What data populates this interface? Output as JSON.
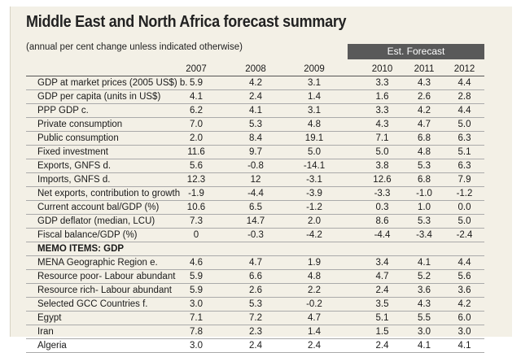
{
  "title": "Middle East and North Africa forecast summary",
  "subtitle": "(annual per cent change unless indicated otherwise)",
  "est_forecast_label": "Est. Forecast",
  "years": [
    "2007",
    "2008",
    "2009",
    "2010",
    "2011",
    "2012"
  ],
  "rows": [
    {
      "label": "GDP at market prices (2005 US$) b.",
      "values": [
        "5.9",
        "4.2",
        "3.1",
        "3.3",
        "4.3",
        "4.4"
      ]
    },
    {
      "label": "GDP per capita (units in US$)",
      "values": [
        "4.1",
        "2.4",
        "1.4",
        "1.6",
        "2.6",
        "2.8"
      ]
    },
    {
      "label": "PPP GDP c.",
      "values": [
        "6.2",
        "4.1",
        "3.1",
        "3.3",
        "4.2",
        "4.4"
      ]
    },
    {
      "label": "Private consumption",
      "values": [
        "7.0",
        "5.3",
        "4.8",
        "4.3",
        "4.7",
        "5.0"
      ]
    },
    {
      "label": "Public consumption",
      "values": [
        "2.0",
        "8.4",
        "19.1",
        "7.1",
        "6.8",
        "6.3"
      ]
    },
    {
      "label": "Fixed investment",
      "values": [
        "11.6",
        "9.7",
        "5.0",
        "5.0",
        "4.8",
        "5.1"
      ]
    },
    {
      "label": "Exports, GNFS d.",
      "values": [
        "5.6",
        "-0.8",
        "-14.1",
        "3.8",
        "5.3",
        "6.3"
      ]
    },
    {
      "label": "Imports, GNFS d.",
      "values": [
        "12.3",
        "12",
        "-3.1",
        "12.6",
        "6.8",
        "7.9"
      ]
    },
    {
      "label": "Net exports, contribution to growth",
      "values": [
        "-1.9",
        "-4.4",
        "-3.9",
        "-3.3",
        "-1.0",
        "-1.2"
      ]
    },
    {
      "label": "Current account bal/GDP (%)",
      "values": [
        "10.6",
        "6.5",
        "-1.2",
        "0.3",
        "1.0",
        "0.0"
      ]
    },
    {
      "label": "GDP deflator (median, LCU)",
      "values": [
        "7.3",
        "14.7",
        "2.0",
        "8.6",
        "5.3",
        "5.0"
      ]
    },
    {
      "label": "Fiscal balance/GDP (%)",
      "values": [
        "0",
        "-0.3",
        "-4.2",
        "-4.4",
        "-3.4",
        "-2.4"
      ]
    },
    {
      "label": "MEMO ITEMS: GDP",
      "memo": true,
      "values": [
        "",
        "",
        "",
        "",
        "",
        ""
      ]
    },
    {
      "label": "MENA Geographic Region e.",
      "values": [
        "4.6",
        "4.7",
        "1.9",
        "3.4",
        "4.1",
        "4.4"
      ]
    },
    {
      "label": "Resource poor- Labour abundant",
      "values": [
        "5.9",
        "6.6",
        "4.8",
        "4.7",
        "5.2",
        "5.6"
      ]
    },
    {
      "label": "Resource rich- Labour abundant",
      "values": [
        "5.9",
        "2.6",
        "2.2",
        "2.4",
        "3.6",
        "3.6"
      ]
    },
    {
      "label": "Selected GCC Countries f.",
      "values": [
        "3.0",
        "5.3",
        "-0.2",
        "3.5",
        "4.3",
        "4.2"
      ]
    },
    {
      "label": "Egypt",
      "values": [
        "7.1",
        "7.2",
        "4.7",
        "5.1",
        "5.5",
        "6.0"
      ]
    },
    {
      "label": "Iran",
      "values": [
        "7.8",
        "2.3",
        "1.4",
        "1.5",
        "3.0",
        "3.0"
      ]
    },
    {
      "label": "Algeria",
      "values": [
        "3.0",
        "2.4",
        "2.4",
        "2.4",
        "4.1",
        "4.1"
      ]
    }
  ]
}
